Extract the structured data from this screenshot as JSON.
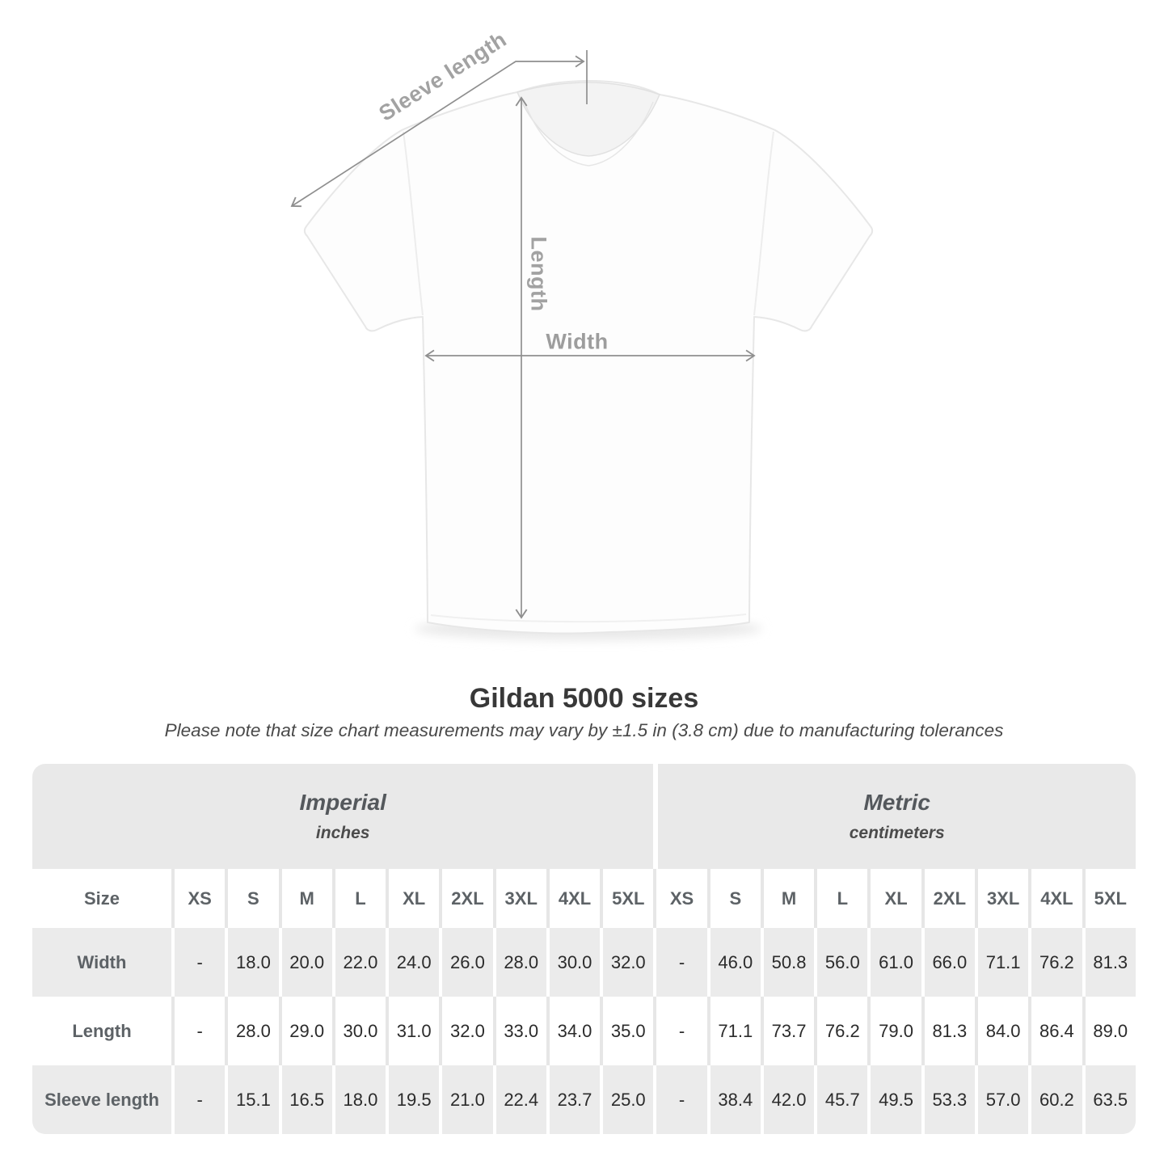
{
  "diagram": {
    "sleeve_label": "Sleeve length",
    "length_label": "Length",
    "width_label": "Width"
  },
  "header": {
    "title": "Gildan 5000 sizes",
    "subtitle": "Please note that size chart measurements may vary by ±1.5 in (3.8 cm) due to manufacturing tolerances"
  },
  "chart_data": {
    "type": "table",
    "title": "Gildan 5000 sizes",
    "size_column_header": "Size",
    "sizes": [
      "XS",
      "S",
      "M",
      "L",
      "XL",
      "2XL",
      "3XL",
      "4XL",
      "5XL"
    ],
    "groups": [
      {
        "label": "Imperial",
        "unit": "inches"
      },
      {
        "label": "Metric",
        "unit": "centimeters"
      }
    ],
    "rows": [
      {
        "label": "Width",
        "imperial": [
          "-",
          "18.0",
          "20.0",
          "22.0",
          "24.0",
          "26.0",
          "28.0",
          "30.0",
          "32.0"
        ],
        "metric": [
          "-",
          "46.0",
          "50.8",
          "56.0",
          "61.0",
          "66.0",
          "71.1",
          "76.2",
          "81.3"
        ]
      },
      {
        "label": "Length",
        "imperial": [
          "-",
          "28.0",
          "29.0",
          "30.0",
          "31.0",
          "32.0",
          "33.0",
          "34.0",
          "35.0"
        ],
        "metric": [
          "-",
          "71.1",
          "73.7",
          "76.2",
          "79.0",
          "81.3",
          "84.0",
          "86.4",
          "89.0"
        ]
      },
      {
        "label": "Sleeve length",
        "imperial": [
          "-",
          "15.1",
          "16.5",
          "18.0",
          "19.5",
          "21.0",
          "22.4",
          "23.7",
          "25.0"
        ],
        "metric": [
          "-",
          "38.4",
          "42.0",
          "45.7",
          "49.5",
          "53.3",
          "57.0",
          "60.2",
          "63.5"
        ]
      }
    ]
  },
  "colors": {
    "stripe_grey": "#ebebeb",
    "group_header_grey": "#e9e9e9",
    "annotation_line": "#8f8f8f",
    "annotation_text": "#a2a2a2",
    "title_text": "#383838",
    "table_header_text": "#5d6266",
    "value_text": "#2b2b2b"
  }
}
